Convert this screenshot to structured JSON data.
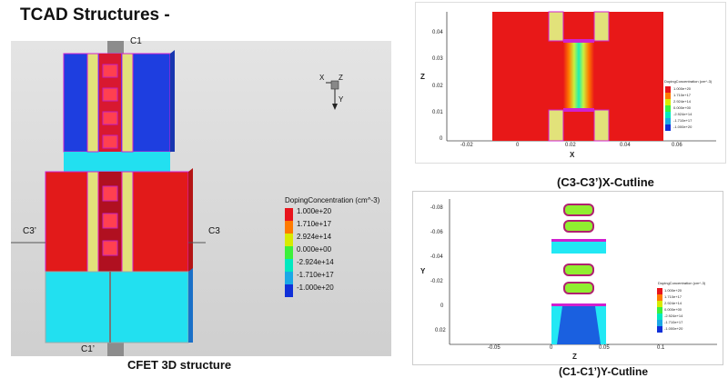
{
  "page": {
    "title": "TCAD Structures -",
    "captions": {
      "main": "CFET 3D structure",
      "x_cut": "(C3-C3’)X-Cutline",
      "y_cut": "(C1-C1’)Y-Cutline"
    }
  },
  "panel3d": {
    "cut_labels": {
      "c1": "C1",
      "c1p": "C1’",
      "c3": "C3",
      "c3p": "C3’"
    },
    "axes": {
      "x": "X",
      "y": "Y",
      "z": "Z"
    },
    "legend": {
      "title": "DopingConcentration (cm^-3)",
      "levels": [
        "1.000e+20",
        "1.710e+17",
        "2.924e+14",
        "0.000e+00",
        "-2.924e+14",
        "-1.710e+17",
        "-1.000e+20"
      ],
      "colors": [
        "#e8141c",
        "#ff7a00",
        "#d8ea00",
        "#3cf03c",
        "#00e8c0",
        "#1aa8e6",
        "#1030d8"
      ]
    }
  },
  "x_cut_plot": {
    "axis_title_x": "X",
    "axis_title_z": "Z",
    "x_ticks": [
      "-0.02",
      "0",
      "0.02",
      "0.04",
      "0.06"
    ],
    "z_ticks": [
      "0.04",
      "0.03",
      "0.02",
      "0.01",
      "0"
    ],
    "legend_title": "DopingConcentration (cm^-3)",
    "legend_levels": [
      "1.000e+20",
      "1.710e+17",
      "2.924e+14",
      "0.000e+00",
      "-2.924e+14",
      "-1.710e+17",
      "-1.000e+20"
    ]
  },
  "y_cut_plot": {
    "axis_title_x": "Z",
    "axis_title_y": "Y",
    "x_ticks": [
      "-0.05",
      "0",
      "0.05",
      "0.1"
    ],
    "y_ticks": [
      "-0.08",
      "-0.06",
      "-0.04",
      "-0.02",
      "0",
      "0.02"
    ],
    "legend_title": "DopingConcentration (cm^-3)",
    "legend_levels": [
      "1.000e+20",
      "1.710e+17",
      "2.924e+14",
      "0.000e+00",
      "-2.924e+14",
      "-1.710e+17",
      "-1.000e+20"
    ]
  }
}
